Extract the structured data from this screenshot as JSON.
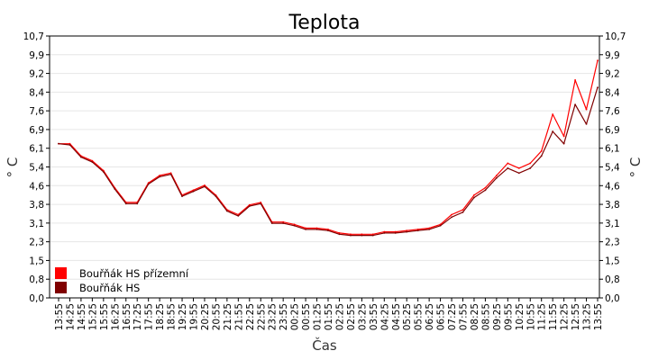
{
  "chart_data": {
    "type": "line",
    "title": "Teplota",
    "xlabel": "Čas",
    "ylabel": "° C",
    "ylabel_right": "° C",
    "yticks": [
      "0,0",
      "0,8",
      "1,5",
      "2,3",
      "3,1",
      "3,8",
      "4,6",
      "5,4",
      "6,1",
      "6,9",
      "7,6",
      "8,4",
      "9,2",
      "9,9",
      "10,7"
    ],
    "ylim": [
      0,
      10.7
    ],
    "grid": true,
    "legend_position": "bottom-left",
    "x": [
      "13:55",
      "14:25",
      "14:55",
      "15:25",
      "15:55",
      "16:25",
      "16:55",
      "17:25",
      "17:55",
      "18:25",
      "18:55",
      "19:25",
      "19:55",
      "20:25",
      "20:55",
      "21:25",
      "21:55",
      "22:25",
      "22:55",
      "23:25",
      "23:55",
      "00:25",
      "00:55",
      "01:25",
      "01:55",
      "02:25",
      "02:55",
      "03:25",
      "03:55",
      "04:25",
      "04:55",
      "05:25",
      "05:55",
      "06:25",
      "06:55",
      "07:25",
      "07:55",
      "08:25",
      "08:55",
      "09:25",
      "09:55",
      "10:25",
      "10:55",
      "11:25",
      "11:55",
      "12:25",
      "12:55",
      "13:25",
      "13:55"
    ],
    "series": [
      {
        "name": "Bouřňák HS přízemní",
        "color": "#ff0000",
        "values": [
          6.3,
          6.3,
          5.8,
          5.6,
          5.2,
          4.5,
          3.9,
          3.9,
          4.7,
          5.0,
          5.1,
          4.2,
          4.4,
          4.6,
          4.2,
          3.6,
          3.4,
          3.8,
          3.9,
          3.1,
          3.1,
          3.0,
          2.85,
          2.85,
          2.8,
          2.65,
          2.6,
          2.6,
          2.6,
          2.7,
          2.7,
          2.75,
          2.8,
          2.85,
          3.0,
          3.4,
          3.6,
          4.2,
          4.5,
          5.0,
          5.5,
          5.3,
          5.5,
          6.0,
          7.5,
          6.6,
          8.9,
          7.7,
          9.7
        ]
      },
      {
        "name": "Bouřňák HS",
        "color": "#800000",
        "values": [
          6.3,
          6.25,
          5.75,
          5.55,
          5.15,
          4.45,
          3.85,
          3.85,
          4.65,
          4.95,
          5.05,
          4.15,
          4.35,
          4.55,
          4.15,
          3.55,
          3.35,
          3.75,
          3.85,
          3.05,
          3.05,
          2.95,
          2.8,
          2.8,
          2.75,
          2.6,
          2.55,
          2.55,
          2.55,
          2.65,
          2.65,
          2.7,
          2.75,
          2.8,
          2.95,
          3.3,
          3.5,
          4.1,
          4.4,
          4.9,
          5.3,
          5.1,
          5.3,
          5.8,
          6.8,
          6.3,
          7.9,
          7.1,
          8.6
        ]
      }
    ]
  }
}
